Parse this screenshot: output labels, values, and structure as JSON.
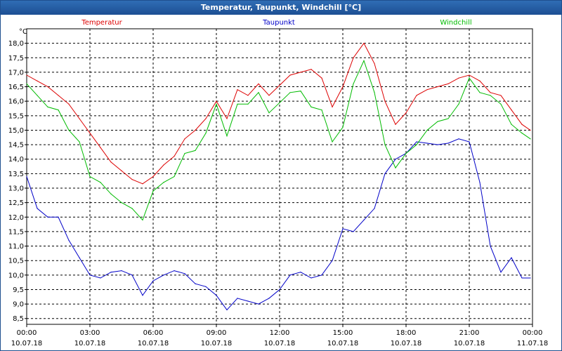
{
  "window": {
    "title": "Temperatur, Taupunkt, Windchill [°C]"
  },
  "chart_data": {
    "type": "line",
    "title": "Temperatur, Taupunkt, Windchill [°C]",
    "ylabel": "°C",
    "xlabel": "",
    "ylim": [
      8.5,
      18.5
    ],
    "xlim": [
      0,
      24
    ],
    "grid": true,
    "x_ticks": [
      {
        "time": "00:00",
        "date": "10.07.18"
      },
      {
        "time": "03:00",
        "date": "10.07.18"
      },
      {
        "time": "06:00",
        "date": "10.07.18"
      },
      {
        "time": "09:00",
        "date": "10.07.18"
      },
      {
        "time": "12:00",
        "date": "10.07.18"
      },
      {
        "time": "15:00",
        "date": "10.07.18"
      },
      {
        "time": "18:00",
        "date": "10.07.18"
      },
      {
        "time": "21:00",
        "date": "10.07.18"
      },
      {
        "time": "00:00",
        "date": "11.07.18"
      }
    ],
    "y_ticks": [
      8.5,
      9.0,
      9.5,
      10.0,
      10.5,
      11.0,
      11.5,
      12.0,
      12.5,
      13.0,
      13.5,
      14.0,
      14.5,
      15.0,
      15.5,
      16.0,
      16.5,
      17.0,
      17.5,
      18.0
    ],
    "y_tick_labels": [
      "8,5",
      "9,0",
      "9,5",
      "10,0",
      "10,5",
      "11,0",
      "11,5",
      "12,0",
      "12,5",
      "13,0",
      "13,5",
      "14,0",
      "14,5",
      "15,0",
      "15,5",
      "16,0",
      "16,5",
      "17,0",
      "17,5",
      "18,0"
    ],
    "series": [
      {
        "name": "Temperatur",
        "color": "#dd0000",
        "x": [
          0,
          0.5,
          1,
          1.5,
          2,
          2.5,
          3,
          3.5,
          4,
          4.5,
          5,
          5.5,
          6,
          6.5,
          7,
          7.5,
          8,
          8.5,
          9,
          9.5,
          10,
          10.5,
          11,
          11.5,
          12,
          12.5,
          13,
          13.5,
          14,
          14.5,
          15,
          15.5,
          16,
          16.5,
          17,
          17.5,
          18,
          18.5,
          19,
          19.5,
          20,
          20.5,
          21,
          21.5,
          22,
          22.5,
          23,
          23.5,
          23.9
        ],
        "values": [
          16.9,
          16.7,
          16.5,
          16.2,
          15.9,
          15.4,
          14.9,
          14.4,
          13.9,
          13.6,
          13.3,
          13.15,
          13.4,
          13.8,
          14.1,
          14.7,
          15.0,
          15.4,
          16.0,
          15.4,
          16.4,
          16.2,
          16.6,
          16.2,
          16.55,
          16.9,
          17.0,
          17.1,
          16.8,
          15.8,
          16.5,
          17.5,
          18.0,
          17.3,
          16.0,
          15.2,
          15.6,
          16.2,
          16.4,
          16.5,
          16.6,
          16.8,
          16.9,
          16.7,
          16.3,
          16.2,
          15.7,
          15.2,
          15.0
        ]
      },
      {
        "name": "Taupunkt",
        "color": "#0000c8",
        "x": [
          0,
          0.5,
          1,
          1.5,
          2,
          2.5,
          3,
          3.5,
          4,
          4.5,
          5,
          5.5,
          6,
          6.5,
          7,
          7.5,
          8,
          8.5,
          9,
          9.5,
          10,
          10.5,
          11,
          11.5,
          12,
          12.5,
          13,
          13.5,
          14,
          14.5,
          15,
          15.5,
          16,
          16.5,
          17,
          17.5,
          18,
          18.5,
          19,
          19.5,
          20,
          20.5,
          21,
          21.5,
          22,
          22.5,
          23,
          23.5,
          23.9
        ],
        "values": [
          13.4,
          12.3,
          12.0,
          12.0,
          11.2,
          10.6,
          10.0,
          9.9,
          10.1,
          10.15,
          10.0,
          9.3,
          9.8,
          10.0,
          10.15,
          10.05,
          9.7,
          9.6,
          9.3,
          8.8,
          9.2,
          9.1,
          9.0,
          9.2,
          9.5,
          10.0,
          10.1,
          9.9,
          10.0,
          10.5,
          11.6,
          11.5,
          11.9,
          12.3,
          13.5,
          14.0,
          14.2,
          14.6,
          14.55,
          14.5,
          14.55,
          14.7,
          14.6,
          13.2,
          11.0,
          10.1,
          10.6,
          9.9,
          9.9
        ]
      },
      {
        "name": "Windchill",
        "color": "#00bb00",
        "x": [
          0,
          0.5,
          1,
          1.5,
          2,
          2.5,
          3,
          3.5,
          4,
          4.5,
          5,
          5.5,
          6,
          6.5,
          7,
          7.5,
          8,
          8.5,
          9,
          9.5,
          10,
          10.5,
          11,
          11.5,
          12,
          12.5,
          13,
          13.5,
          14,
          14.5,
          15,
          15.5,
          16,
          16.5,
          17,
          17.5,
          18,
          18.5,
          19,
          19.5,
          20,
          20.5,
          21,
          21.5,
          22,
          22.5,
          23,
          23.5,
          23.9
        ],
        "values": [
          16.6,
          16.2,
          15.8,
          15.7,
          15.0,
          14.6,
          13.4,
          13.2,
          12.8,
          12.5,
          12.3,
          11.9,
          12.9,
          13.2,
          13.4,
          14.2,
          14.3,
          14.9,
          15.9,
          14.8,
          15.9,
          15.9,
          16.3,
          15.6,
          15.95,
          16.3,
          16.35,
          15.8,
          15.7,
          14.6,
          15.1,
          16.6,
          17.4,
          16.3,
          14.5,
          13.7,
          14.2,
          14.5,
          15.0,
          15.3,
          15.4,
          15.9,
          16.8,
          16.3,
          16.2,
          15.9,
          15.2,
          14.9,
          14.7
        ]
      }
    ]
  }
}
